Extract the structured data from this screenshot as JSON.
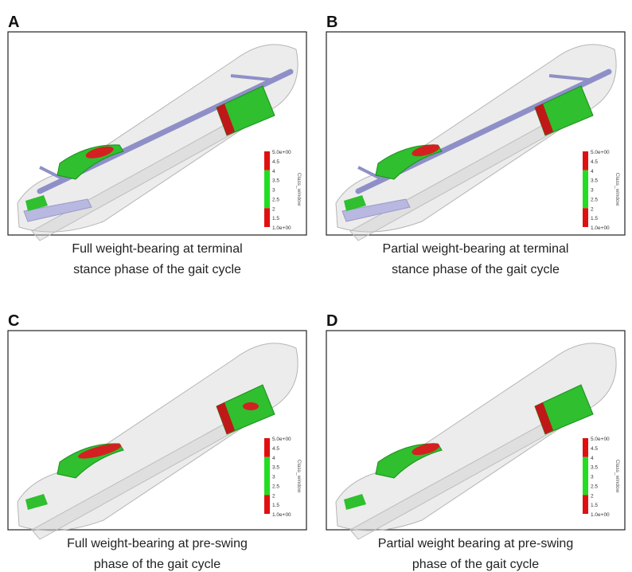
{
  "panels": [
    {
      "letter": "A",
      "caption": [
        "Full weight-bearing at terminal",
        "stance phase of the gait cycle"
      ],
      "colorbar": {
        "title": "Class_window",
        "labels": [
          "5.0e+00",
          "4.5",
          "4",
          "3.5",
          "3",
          "2.5",
          "2",
          "1.5",
          "1.0e+00"
        ]
      }
    },
    {
      "letter": "B",
      "caption": [
        "Partial weight-bearing at terminal",
        "stance phase of the gait cycle"
      ],
      "colorbar": {
        "title": "Class_window",
        "labels": [
          "5.0e+00",
          "4.5",
          "4",
          "3.5",
          "3",
          "2.5",
          "2",
          "1.5",
          "1.0e+00"
        ]
      }
    },
    {
      "letter": "C",
      "caption": [
        "Full weight-bearing at pre-swing",
        "phase of the gait cycle"
      ],
      "colorbar": {
        "title": "Class_window",
        "labels": [
          "5.0e+00",
          "4.5",
          "4",
          "3.5",
          "3",
          "2.5",
          "2",
          "1.5",
          "1.0e+00"
        ]
      }
    },
    {
      "letter": "D",
      "caption": [
        "Partial weight bearing at pre-swing",
        "phase of the gait cycle"
      ],
      "colorbar": {
        "title": "Class_window",
        "labels": [
          "5.0e+00",
          "4.5",
          "4",
          "3.5",
          "3",
          "2.5",
          "2",
          "1.5",
          "1.0e+00"
        ]
      }
    }
  ]
}
